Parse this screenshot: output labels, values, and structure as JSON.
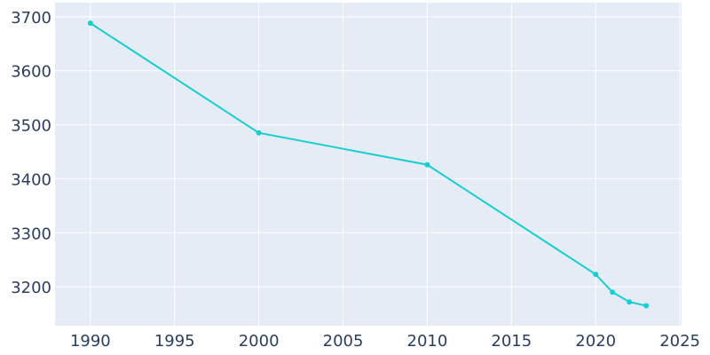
{
  "chart_data": {
    "type": "line",
    "x": [
      1990,
      2000,
      2010,
      2020,
      2021,
      2022,
      2023
    ],
    "series": [
      {
        "color": "#17cfcf",
        "values": [
          3688,
          3485,
          3426,
          3223,
          3190,
          3172,
          3165
        ]
      }
    ],
    "xlim": [
      1987.9,
      2025.1
    ],
    "xticks": [
      1990,
      1995,
      2000,
      2005,
      2010,
      2015,
      2020,
      2025
    ],
    "ylim": [
      3128,
      3726
    ],
    "yticks": [
      3200,
      3300,
      3400,
      3500,
      3600,
      3700
    ],
    "grid": true
  }
}
